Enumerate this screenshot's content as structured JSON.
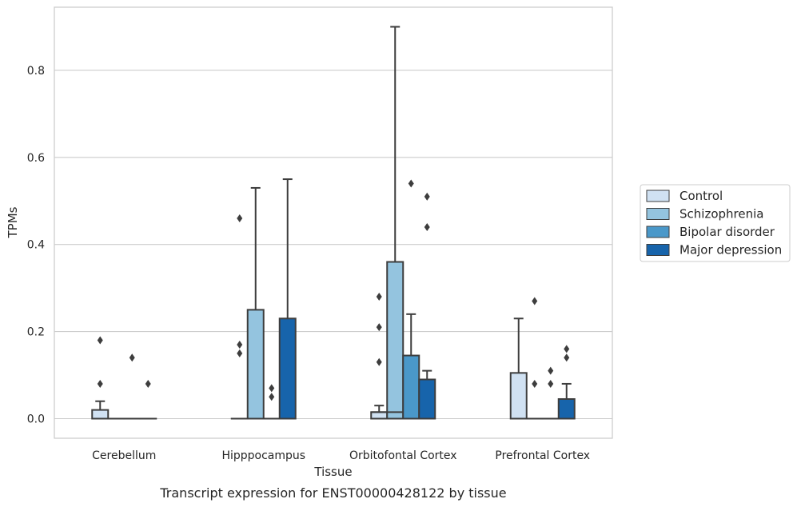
{
  "chart_data": {
    "type": "box",
    "xlabel": "Tissue",
    "ylabel": "TPMs",
    "caption": "Transcript expression for ENST00000428122 by tissue",
    "ylim": [
      -0.045,
      0.945
    ],
    "yticks": [
      0.0,
      0.2,
      0.4,
      0.6,
      0.8
    ],
    "ytick_labels": [
      "0.0",
      "0.2",
      "0.4",
      "0.6",
      "0.8"
    ],
    "grid": "horizontal",
    "legend_position": "right",
    "categories": [
      "Cerebellum",
      "Hipppocampus",
      "Orbitofontal Cortex",
      "Prefrontal Cortex"
    ],
    "series": [
      {
        "name": "Control",
        "color": "#d0e1f2",
        "boxes": [
          {
            "q1": 0.0,
            "median": 0.0,
            "q3": 0.02,
            "whisker_low": 0.0,
            "whisker_high": 0.04,
            "outliers": [
              0.08,
              0.18
            ]
          },
          {
            "q1": 0.0,
            "median": 0.0,
            "q3": 0.0,
            "whisker_low": 0.0,
            "whisker_high": 0.0,
            "outliers": [
              0.15,
              0.17,
              0.46
            ]
          },
          {
            "q1": 0.0,
            "median": 0.015,
            "q3": 0.015,
            "whisker_low": 0.0,
            "whisker_high": 0.03,
            "outliers": [
              0.13,
              0.21,
              0.28
            ]
          },
          {
            "q1": 0.0,
            "median": 0.0,
            "q3": 0.105,
            "whisker_low": 0.0,
            "whisker_high": 0.23,
            "outliers": []
          }
        ]
      },
      {
        "name": "Schizophrenia",
        "color": "#94c4df",
        "boxes": [
          {
            "q1": 0.0,
            "median": 0.0,
            "q3": 0.0,
            "whisker_low": 0.0,
            "whisker_high": 0.0,
            "outliers": []
          },
          {
            "q1": 0.0,
            "median": 0.0,
            "q3": 0.25,
            "whisker_low": 0.0,
            "whisker_high": 0.53,
            "outliers": []
          },
          {
            "q1": 0.0,
            "median": 0.015,
            "q3": 0.36,
            "whisker_low": 0.0,
            "whisker_high": 0.9,
            "outliers": []
          },
          {
            "q1": 0.0,
            "median": 0.0,
            "q3": 0.0,
            "whisker_low": 0.0,
            "whisker_high": 0.0,
            "outliers": [
              0.08,
              0.27
            ]
          }
        ]
      },
      {
        "name": "Bipolar disorder",
        "color": "#4a98c9",
        "boxes": [
          {
            "q1": 0.0,
            "median": 0.0,
            "q3": 0.0,
            "whisker_low": 0.0,
            "whisker_high": 0.0,
            "outliers": [
              0.14
            ]
          },
          {
            "q1": 0.0,
            "median": 0.0,
            "q3": 0.0,
            "whisker_low": 0.0,
            "whisker_high": 0.0,
            "outliers": [
              0.05,
              0.07
            ]
          },
          {
            "q1": 0.0,
            "median": 0.0,
            "q3": 0.145,
            "whisker_low": 0.0,
            "whisker_high": 0.24,
            "outliers": [
              0.54
            ]
          },
          {
            "q1": 0.0,
            "median": 0.0,
            "q3": 0.0,
            "whisker_low": 0.0,
            "whisker_high": 0.0,
            "outliers": [
              0.08,
              0.11
            ]
          }
        ]
      },
      {
        "name": "Major depression",
        "color": "#1764ab",
        "boxes": [
          {
            "q1": 0.0,
            "median": 0.0,
            "q3": 0.0,
            "whisker_low": 0.0,
            "whisker_high": 0.0,
            "outliers": [
              0.08
            ]
          },
          {
            "q1": 0.0,
            "median": 0.0,
            "q3": 0.23,
            "whisker_low": 0.0,
            "whisker_high": 0.55,
            "outliers": []
          },
          {
            "q1": 0.0,
            "median": 0.0,
            "q3": 0.09,
            "whisker_low": 0.0,
            "whisker_high": 0.11,
            "outliers": [
              0.44,
              0.51
            ]
          },
          {
            "q1": 0.0,
            "median": 0.0,
            "q3": 0.045,
            "whisker_low": 0.0,
            "whisker_high": 0.08,
            "outliers": [
              0.14,
              0.16
            ]
          }
        ]
      }
    ]
  }
}
